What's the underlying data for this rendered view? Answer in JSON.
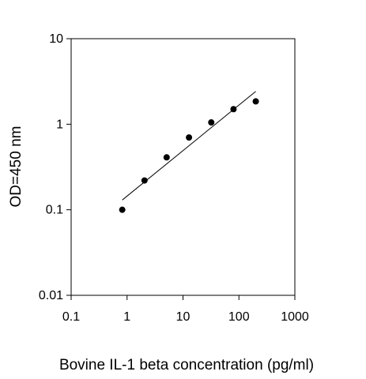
{
  "chart_data": {
    "type": "scatter",
    "title": "",
    "xlabel": "Bovine IL-1 beta concentration (pg/ml)",
    "ylabel": "OD=450 nm",
    "x_scale": "log",
    "y_scale": "log",
    "xlim": [
      0.1,
      1000
    ],
    "ylim": [
      0.01,
      10
    ],
    "x_ticks": [
      "0.1",
      "1",
      "10",
      "100",
      "1000"
    ],
    "y_ticks": [
      "0.01",
      "0.1",
      "1",
      "10"
    ],
    "grid": false,
    "legend": "none",
    "series": [
      {
        "points": [
          {
            "x": 0.82,
            "y": 0.1
          },
          {
            "x": 2.05,
            "y": 0.22
          },
          {
            "x": 5.1,
            "y": 0.41
          },
          {
            "x": 12.8,
            "y": 0.7
          },
          {
            "x": 32,
            "y": 1.05
          },
          {
            "x": 80,
            "y": 1.5
          },
          {
            "x": 200,
            "y": 1.85
          }
        ]
      }
    ],
    "trendline": {
      "points": [
        {
          "x": 0.82,
          "y": 0.13
        },
        {
          "x": 200,
          "y": 2.42
        }
      ]
    },
    "colors": {
      "marker": "#000000",
      "line": "#000000",
      "axis": "#000000"
    }
  }
}
